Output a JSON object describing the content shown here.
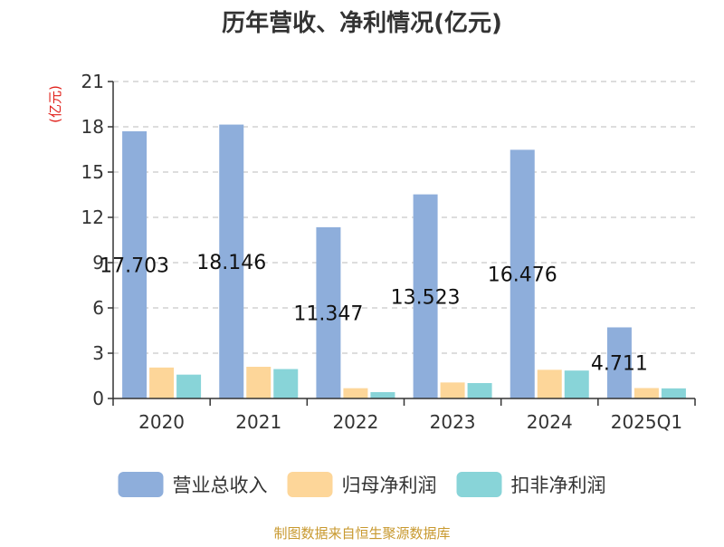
{
  "chart_data": {
    "type": "bar",
    "title": "历年营收、净利情况(亿元)",
    "ylabel": "(亿元)",
    "categories": [
      "2020",
      "2021",
      "2022",
      "2023",
      "2024",
      "2025Q1"
    ],
    "ylim": [
      0,
      21
    ],
    "yticks": [
      0,
      3,
      6,
      9,
      12,
      15,
      18,
      21
    ],
    "grid": true,
    "legend_position": "bottom",
    "series": [
      {
        "name": "营业总收入",
        "values": [
          17.703,
          18.146,
          11.347,
          13.523,
          16.476,
          4.711
        ],
        "labels": [
          "17.703",
          "18.146",
          "11.347",
          "13.523",
          "16.476",
          "4.711"
        ]
      },
      {
        "name": "归母净利润",
        "values": [
          2.05,
          2.1,
          0.68,
          1.06,
          1.9,
          0.69
        ]
      },
      {
        "name": "扣非净利润",
        "values": [
          1.58,
          1.95,
          0.42,
          1.02,
          1.85,
          0.67
        ]
      }
    ]
  },
  "colors": {
    "series": [
      "#8eaedb",
      "#fdd699",
      "#88d4d8"
    ],
    "ylabel": "#e0201a",
    "source": "#c8992f",
    "grid": "#bbbbbb",
    "axis": "#333333"
  },
  "source_text": "制图数据来自恒生聚源数据库"
}
